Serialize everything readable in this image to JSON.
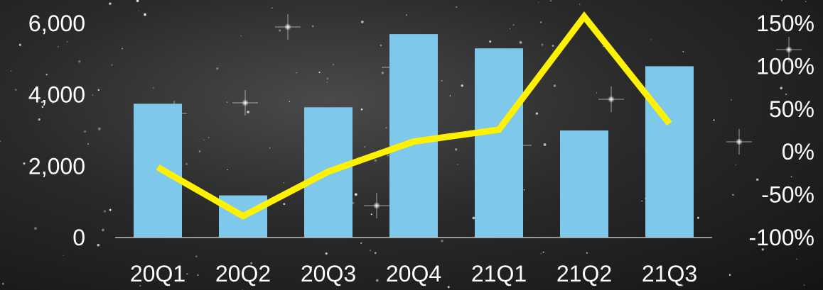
{
  "chart_data": {
    "type": "bar",
    "categories": [
      "20Q1",
      "20Q2",
      "20Q3",
      "20Q4",
      "21Q1",
      "21Q2",
      "21Q3"
    ],
    "series": [
      {
        "type": "bar",
        "axis": "left",
        "values": [
          3750,
          1180,
          3650,
          5700,
          5300,
          3000,
          4800
        ],
        "color": "#7EC8EC"
      },
      {
        "type": "line",
        "axis": "right",
        "values": [
          -18,
          -75,
          -23,
          12,
          26,
          158,
          33
        ],
        "color": "#FFF200"
      }
    ],
    "y_left": {
      "ylim": [
        0,
        6000
      ],
      "ticks": [
        0,
        2000,
        4000,
        6000
      ],
      "tick_labels": [
        "0",
        "2,000",
        "4,000",
        "6,000"
      ]
    },
    "y_right": {
      "ylim": [
        -100,
        150
      ],
      "ticks": [
        -100,
        -50,
        0,
        50,
        100,
        150
      ],
      "tick_labels": [
        "-100%",
        "-50%",
        "0%",
        "50%",
        "100%",
        "150%"
      ]
    },
    "grid": false,
    "legend": "none"
  }
}
